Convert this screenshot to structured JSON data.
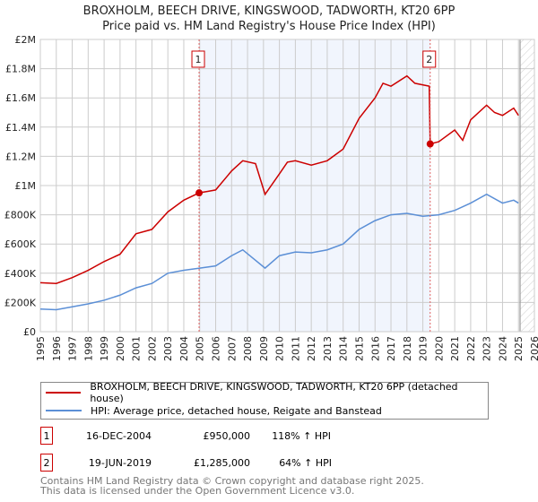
{
  "chart_data": {
    "type": "line",
    "title": "BROXHOLM, BEECH DRIVE, KINGSWOOD, TADWORTH, KT20 6PP",
    "subtitle": "Price paid vs. HM Land Registry's House Price Index (HPI)",
    "xlim": [
      1995,
      2026
    ],
    "ylim": [
      0,
      2000000
    ],
    "x_ticks": [
      "1995",
      "1996",
      "1997",
      "1998",
      "1999",
      "2000",
      "2001",
      "2002",
      "2003",
      "2004",
      "2005",
      "2006",
      "2007",
      "2008",
      "2009",
      "2010",
      "2011",
      "2012",
      "2013",
      "2014",
      "2015",
      "2016",
      "2017",
      "2018",
      "2019",
      "2020",
      "2021",
      "2022",
      "2023",
      "2024",
      "2025",
      "2026"
    ],
    "y_ticks": [
      {
        "v": 0,
        "l": "£0"
      },
      {
        "v": 200000,
        "l": "£200K"
      },
      {
        "v": 400000,
        "l": "£400K"
      },
      {
        "v": 600000,
        "l": "£600K"
      },
      {
        "v": 800000,
        "l": "£800K"
      },
      {
        "v": 1000000,
        "l": "£1M"
      },
      {
        "v": 1200000,
        "l": "£1.2M"
      },
      {
        "v": 1400000,
        "l": "£1.4M"
      },
      {
        "v": 1600000,
        "l": "£1.6M"
      },
      {
        "v": 1800000,
        "l": "£1.8M"
      },
      {
        "v": 2000000,
        "l": "£2M"
      }
    ],
    "grid": true,
    "series": [
      {
        "name": "BROXHOLM, BEECH DRIVE, KINGSWOOD, TADWORTH, KT20 6PP (detached house)",
        "color": "#cc0000",
        "x": [
          1995,
          1996,
          1997,
          1998,
          1999,
          2000,
          2001,
          2002,
          2003,
          2004,
          2004.96,
          2005.5,
          2006,
          2007,
          2007.7,
          2008.5,
          2009.1,
          2010,
          2010.5,
          2011,
          2012,
          2013,
          2014,
          2015,
          2016,
          2016.5,
          2017,
          2018,
          2018.5,
          2019.4,
          2019.46,
          2020,
          2021,
          2021.5,
          2022,
          2023,
          2023.5,
          2024,
          2024.7,
          2025
        ],
        "y": [
          335000,
          330000,
          370000,
          420000,
          480000,
          530000,
          670000,
          700000,
          820000,
          900000,
          950000,
          960000,
          970000,
          1100000,
          1170000,
          1150000,
          940000,
          1080000,
          1160000,
          1170000,
          1140000,
          1170000,
          1250000,
          1460000,
          1600000,
          1700000,
          1680000,
          1750000,
          1700000,
          1680000,
          1285000,
          1300000,
          1380000,
          1310000,
          1450000,
          1550000,
          1500000,
          1480000,
          1530000,
          1480000
        ]
      },
      {
        "name": "HPI: Average price, detached house, Reigate and Banstead",
        "color": "#5b8fd6",
        "x": [
          1995,
          1996,
          1997,
          1998,
          1999,
          2000,
          2001,
          2002,
          2003,
          2004,
          2005,
          2006,
          2007,
          2007.7,
          2009.1,
          2010,
          2011,
          2012,
          2013,
          2014,
          2015,
          2016,
          2017,
          2018,
          2019,
          2020,
          2021,
          2022,
          2023,
          2024,
          2024.7,
          2025
        ],
        "y": [
          155000,
          150000,
          170000,
          190000,
          215000,
          250000,
          300000,
          330000,
          400000,
          420000,
          435000,
          450000,
          520000,
          560000,
          435000,
          520000,
          545000,
          540000,
          560000,
          600000,
          700000,
          760000,
          800000,
          810000,
          790000,
          800000,
          830000,
          880000,
          940000,
          880000,
          900000,
          880000
        ]
      }
    ],
    "sales": [
      {
        "id": "1",
        "date": "16-DEC-2004",
        "x": 2004.96,
        "price": "£950,000",
        "value": 950000,
        "hpi": "118% ↑ HPI"
      },
      {
        "id": "2",
        "date": "19-JUN-2019",
        "x": 2019.46,
        "price": "£1,285,000",
        "value": 1285000,
        "hpi": "64% ↑ HPI"
      }
    ],
    "forecast_start": 2025.1
  },
  "footer": {
    "line1": "Contains HM Land Registry data © Crown copyright and database right 2025.",
    "line2": "This data is licensed under the Open Government Licence v3.0."
  }
}
